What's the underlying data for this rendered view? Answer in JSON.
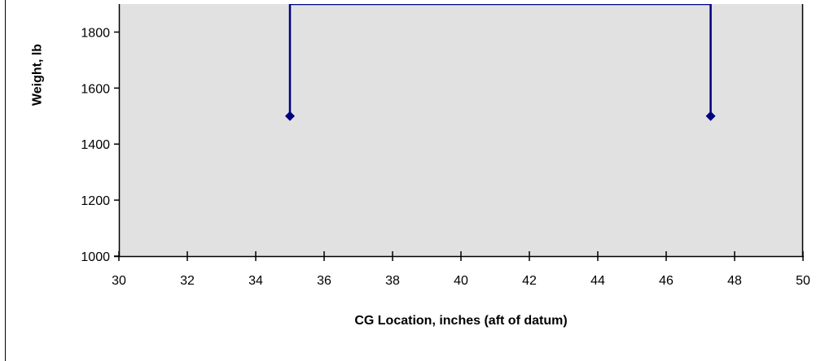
{
  "chart_data": {
    "type": "line",
    "title": "",
    "xlabel": "CG Location, inches (aft of datum)",
    "ylabel": "Weight, lb",
    "xlim": [
      30,
      50
    ],
    "ylim": [
      1000,
      1900
    ],
    "x_ticks": [
      30,
      32,
      34,
      36,
      38,
      40,
      42,
      44,
      46,
      48,
      50
    ],
    "y_ticks": [
      1000,
      1200,
      1400,
      1600,
      1800
    ],
    "grid": false,
    "plot_background": "#E1E1E1",
    "series": [
      {
        "color": "#000080",
        "marker": "diamond",
        "points": [
          {
            "x": 35.0,
            "y": 1500
          },
          {
            "x": 35.0,
            "y": 1900
          },
          {
            "x": 47.3,
            "y": 1900
          },
          {
            "x": 47.3,
            "y": 1500
          }
        ]
      }
    ],
    "marker_points": [
      {
        "x": 35.0,
        "y": 1500
      },
      {
        "x": 47.3,
        "y": 1500
      }
    ]
  }
}
